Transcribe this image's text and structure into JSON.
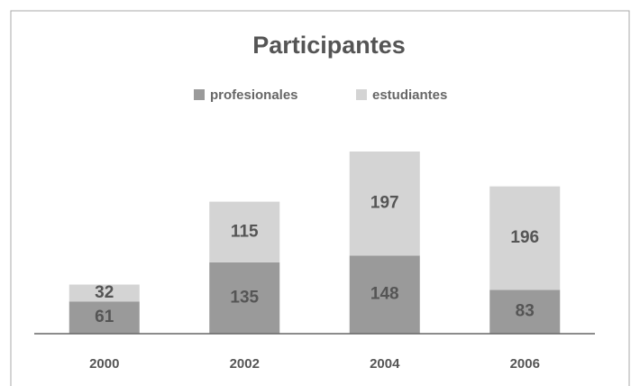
{
  "chart_data": {
    "type": "stacked_bar",
    "title": "Participantes",
    "categories": [
      "2000",
      "2002",
      "2004",
      "2006"
    ],
    "series": [
      {
        "name": "profesionales",
        "color": "#9a9a9a",
        "values": [
          61,
          135,
          148,
          83
        ]
      },
      {
        "name": "estudiantes",
        "color": "#d4d4d4",
        "values": [
          32,
          115,
          197,
          196
        ]
      }
    ],
    "legend": "top"
  }
}
